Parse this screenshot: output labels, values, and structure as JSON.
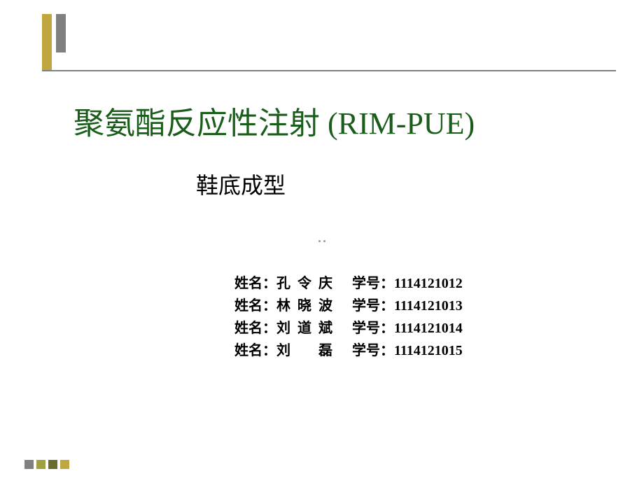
{
  "title": "聚氨酯反应性注射 (RIM-PUE)",
  "subtitle": "鞋底成型",
  "authors": [
    {
      "name_label": "姓名：",
      "name": "孔令庆",
      "id_label": "学号：",
      "id": "1114121012"
    },
    {
      "name_label": "姓名：",
      "name": "林晓波",
      "id_label": "学号：",
      "id": "1114121013"
    },
    {
      "name_label": "姓名：",
      "name": "刘道斌",
      "id_label": "学号：",
      "id": "1114121014"
    },
    {
      "name_label": "姓名：",
      "name": "刘　磊",
      "id_label": "学号：",
      "id": "1114121015"
    }
  ],
  "colors": {
    "title_color": "#1a5d1a",
    "text_color": "#000000",
    "deco_gold": "#c0a63e",
    "deco_grey": "#808080",
    "background": "#ffffff"
  }
}
